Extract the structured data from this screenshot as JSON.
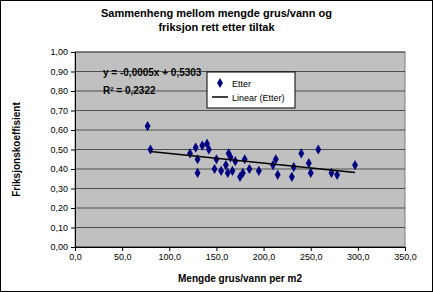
{
  "chart_data": {
    "type": "scatter",
    "title": "Sammenheng mellom mengde grus/vann og friksjon rett etter tiltak",
    "x_label": "Mengde grus/vann per m2",
    "y_label": "Friksjonskoeffisient",
    "xlim": [
      0,
      350
    ],
    "xticks": [
      {
        "value": 0,
        "label": "0,0"
      },
      {
        "value": 50,
        "label": "50,0"
      },
      {
        "value": 100,
        "label": "100,0"
      },
      {
        "value": 150,
        "label": "150,0"
      },
      {
        "value": 200,
        "label": "200,0"
      },
      {
        "value": 250,
        "label": "250,0"
      },
      {
        "value": 300,
        "label": "300,0"
      },
      {
        "value": 350,
        "label": "350,0"
      }
    ],
    "ylim": [
      0,
      1
    ],
    "yticks": [
      {
        "value": 0,
        "label": "0,00"
      },
      {
        "value": 0.1,
        "label": "0,10"
      },
      {
        "value": 0.2,
        "label": "0,20"
      },
      {
        "value": 0.3,
        "label": "0,30"
      },
      {
        "value": 0.4,
        "label": "0,40"
      },
      {
        "value": 0.5,
        "label": "0,50"
      },
      {
        "value": 0.6,
        "label": "0,60"
      },
      {
        "value": 0.7,
        "label": "0,70"
      },
      {
        "value": 0.8,
        "label": "0,80"
      },
      {
        "value": 0.9,
        "label": "0,90"
      },
      {
        "value": 1,
        "label": "1,00"
      }
    ],
    "grid": true,
    "legend": "top-right",
    "annotations": [
      "y = -0,0005x + 0,5303",
      "R² = 0,2322"
    ],
    "series": [
      {
        "name": "Etter",
        "type": "scatter",
        "marker": "diamond",
        "color": "#000080",
        "x": [
          77,
          80,
          122,
          128,
          130,
          130,
          135,
          140,
          142,
          148,
          150,
          155,
          160,
          162,
          163,
          165,
          167,
          170,
          175,
          178,
          180,
          185,
          195,
          210,
          213,
          215,
          230,
          232,
          240,
          248,
          250,
          258,
          272,
          278,
          297
        ],
        "values": [
          0.62,
          0.5,
          0.48,
          0.51,
          0.38,
          0.45,
          0.52,
          0.53,
          0.5,
          0.4,
          0.45,
          0.39,
          0.42,
          0.38,
          0.48,
          0.46,
          0.39,
          0.44,
          0.36,
          0.38,
          0.45,
          0.4,
          0.39,
          0.42,
          0.45,
          0.37,
          0.36,
          0.41,
          0.48,
          0.43,
          0.38,
          0.5,
          0.38,
          0.37,
          0.42
        ]
      },
      {
        "name": "Linear (Etter)",
        "type": "line",
        "line_style": "solid",
        "color": "#000000",
        "x": [
          80,
          297
        ],
        "values": [
          0.49,
          0.382
        ]
      }
    ]
  }
}
